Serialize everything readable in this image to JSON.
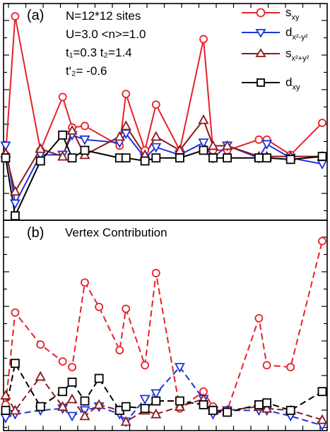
{
  "figure": {
    "panel_a_label": "(a)",
    "panel_b_label": "(b)",
    "panel_b_title": "Vertex Contribution",
    "params": {
      "line1": "N=12*12 sites",
      "line2": "U=3.0 <n>=1.0",
      "line3": "t₁=0.3 t₂=1.4",
      "line4": "t'₂= -0.6"
    },
    "legend": [
      {
        "label": "sₓᵧ",
        "base": "s",
        "sub": "xy",
        "sup": ""
      },
      {
        "label": "d x2-y2",
        "base": "d",
        "sub": "x²-y²",
        "sup": ""
      },
      {
        "label": "s x2+y2",
        "base": "s",
        "sub": "x²+y²",
        "sup": ""
      },
      {
        "label": "d xy",
        "base": "d",
        "sub": "xy",
        "sup": ""
      }
    ]
  },
  "chart_data": [
    {
      "panel": "a",
      "type": "line",
      "xlim": [
        0,
        20
      ],
      "ylim": [
        -4,
        10
      ],
      "series": [
        {
          "name": "s_xy",
          "color": "#e8202a",
          "marker": "circle",
          "dash": "",
          "x": [
            0.0,
            0.6,
            2.2,
            3.6,
            4.2,
            5.0,
            7.2,
            7.6,
            8.8,
            9.5,
            11.0,
            12.5,
            13.1,
            14.0,
            16.0,
            16.5,
            18.0,
            20.0
          ],
          "y": [
            0.2,
            9.3,
            0.5,
            4.0,
            2.0,
            2.1,
            0.8,
            4.2,
            0.5,
            3.5,
            0.5,
            7.8,
            0.5,
            0.5,
            1.2,
            1.2,
            0.2,
            2.3
          ]
        },
        {
          "name": "d_x2-y2",
          "color": "#1d33d8",
          "marker": "triangle-down",
          "dash": "",
          "x": [
            0.0,
            0.6,
            2.2,
            3.6,
            4.2,
            5.0,
            7.2,
            7.6,
            8.8,
            9.5,
            11.0,
            12.5,
            13.1,
            14.0,
            16.0,
            16.5,
            18.0,
            20.0
          ],
          "y": [
            0.8,
            -3.0,
            0.2,
            0.2,
            1.5,
            1.2,
            1.0,
            1.6,
            0.0,
            0.7,
            0.2,
            1.0,
            0.0,
            0.8,
            0.0,
            0.9,
            0.0,
            -0.4
          ]
        },
        {
          "name": "s_x2+y2",
          "color": "#8b1a1a",
          "marker": "triangle-up",
          "dash": "",
          "x": [
            0.0,
            0.6,
            2.2,
            3.6,
            4.2,
            5.0,
            7.2,
            7.6,
            8.8,
            9.5,
            11.0,
            12.5,
            13.1,
            14.0,
            16.0,
            16.5,
            18.0,
            20.0
          ],
          "y": [
            0.3,
            -2.2,
            0.6,
            0.1,
            1.8,
            0.2,
            1.4,
            2.1,
            0.2,
            1.4,
            0.5,
            2.5,
            0.8,
            0.8,
            0.1,
            0.1,
            0.1,
            0.1
          ]
        },
        {
          "name": "d_xy",
          "color": "#000000",
          "marker": "square",
          "dash": "",
          "x": [
            0.0,
            0.6,
            2.2,
            3.6,
            4.2,
            5.0,
            7.2,
            7.6,
            8.8,
            9.5,
            11.0,
            12.5,
            13.1,
            14.0,
            16.0,
            16.5,
            18.0,
            20.0
          ],
          "y": [
            0.0,
            -3.8,
            -0.2,
            1.5,
            0.0,
            0.5,
            0.0,
            0.0,
            -0.2,
            0.0,
            0.0,
            0.5,
            0.0,
            0.0,
            0.0,
            0.0,
            -0.1,
            0.1
          ]
        }
      ]
    },
    {
      "panel": "b",
      "type": "line",
      "title": "Vertex Contribution",
      "xlim": [
        0,
        20
      ],
      "ylim": [
        -1,
        10
      ],
      "series": [
        {
          "name": "s_xy",
          "color": "#e8202a",
          "marker": "circle",
          "dash": "9,5",
          "x": [
            0.0,
            0.6,
            2.2,
            3.6,
            4.2,
            5.0,
            5.9,
            7.2,
            7.6,
            8.8,
            9.5,
            11.0,
            12.5,
            13.1,
            14.0,
            16.0,
            16.5,
            18.0,
            20.0
          ],
          "y": [
            0.3,
            5.2,
            3.5,
            2.6,
            2.3,
            6.8,
            5.5,
            3.2,
            5.4,
            2.4,
            7.3,
            0.1,
            1.0,
            0.2,
            0.0,
            4.9,
            2.4,
            2.3,
            9.0
          ],
          "err": [
            0.15,
            0.15,
            0.15,
            0.15,
            0.15,
            0.15,
            0.15,
            0.15,
            0.15,
            0.15,
            0.15,
            0.15,
            0.15,
            0.15,
            0.15,
            0.15,
            0.15,
            0.15,
            0.15
          ]
        },
        {
          "name": "d_x2-y2",
          "color": "#1d33d8",
          "marker": "triangle-down",
          "dash": "9,5",
          "x": [
            0.0,
            0.6,
            2.2,
            3.6,
            4.2,
            5.0,
            5.9,
            7.2,
            7.6,
            8.8,
            9.5,
            11.0,
            12.5,
            13.1,
            14.0,
            16.0,
            16.5,
            18.0,
            20.0
          ],
          "y": [
            -0.4,
            -0.2,
            0.0,
            0.1,
            -0.3,
            0.0,
            0.2,
            -0.2,
            -0.6,
            0.6,
            0.9,
            2.3,
            0.6,
            -0.2,
            0.0,
            0.0,
            0.0,
            -0.3,
            -0.8
          ],
          "err": [
            0.1,
            0.1,
            0.1,
            0.1,
            0.1,
            0.1,
            0.1,
            0.1,
            0.1,
            0.1,
            0.1,
            0.1,
            0.1,
            0.1,
            0.1,
            0.1,
            0.1,
            0.1,
            0.1
          ]
        },
        {
          "name": "s_x2+y2",
          "color": "#8b1a1a",
          "marker": "triangle-up",
          "dash": "9,5",
          "x": [
            0.0,
            0.6,
            2.2,
            3.6,
            4.2,
            5.0,
            5.9,
            7.2,
            7.6,
            8.8,
            9.5,
            11.0,
            12.5,
            13.1,
            14.0,
            16.0,
            16.5,
            18.0,
            20.0
          ],
          "y": [
            0.8,
            0.0,
            1.8,
            0.2,
            0.6,
            -0.3,
            0.3,
            0.0,
            -0.6,
            0.0,
            -0.2,
            0.2,
            0.6,
            0.0,
            0.0,
            0.2,
            0.1,
            0.0,
            -0.5
          ],
          "err": [
            0.1,
            0.1,
            0.1,
            0.1,
            0.1,
            0.1,
            0.1,
            0.1,
            0.1,
            0.1,
            0.1,
            0.1,
            0.1,
            0.1,
            0.1,
            0.1,
            0.1,
            0.1,
            0.1
          ]
        },
        {
          "name": "d_xy",
          "color": "#000000",
          "marker": "square",
          "dash": "9,5",
          "x": [
            0.0,
            0.6,
            2.2,
            3.6,
            4.2,
            5.0,
            5.9,
            7.2,
            7.6,
            8.8,
            9.5,
            11.0,
            12.5,
            13.1,
            14.0,
            16.0,
            16.5,
            18.0,
            20.0
          ],
          "y": [
            0.0,
            2.5,
            0.2,
            1.0,
            1.5,
            0.5,
            1.7,
            0.0,
            0.2,
            0.1,
            0.5,
            0.5,
            0.3,
            0.0,
            -0.1,
            0.3,
            0.4,
            0.0,
            1.0
          ],
          "err": [
            0.1,
            0.1,
            0.1,
            0.1,
            0.1,
            0.1,
            0.1,
            0.1,
            0.1,
            0.1,
            0.1,
            0.1,
            0.1,
            0.1,
            0.1,
            0.1,
            0.1,
            0.1,
            0.1
          ]
        }
      ]
    }
  ]
}
